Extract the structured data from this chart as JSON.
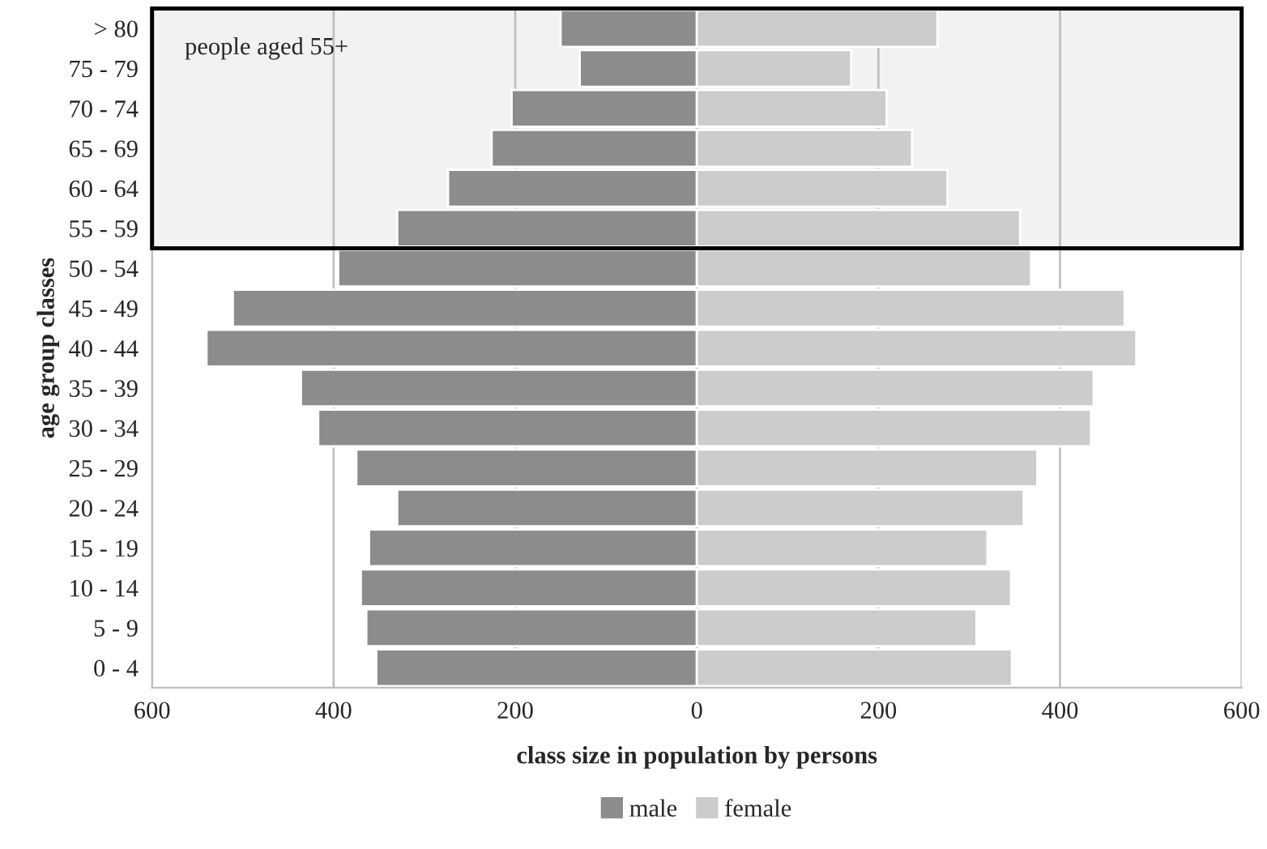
{
  "chart_data": {
    "type": "bar",
    "orientation": "horizontal",
    "stacked": true,
    "xlabel": "class size in population by persons",
    "ylabel": "age group classes",
    "categories": [
      "> 80",
      "75 - 79",
      "70 - 74",
      "65 - 69",
      "60 - 64",
      "55 - 59",
      "50 - 54",
      "45 - 49",
      "40 - 44",
      "35 - 39",
      "30 - 34",
      "25 - 29",
      "20 - 24",
      "15 - 19",
      "10 - 14",
      "5 - 9",
      "0 - 4"
    ],
    "series": [
      {
        "name": "male",
        "color": "#8c8c8c",
        "values": [
          -150,
          -129,
          -204,
          -226,
          -274,
          -330,
          -395,
          -511,
          -540,
          -436,
          -417,
          -375,
          -330,
          -361,
          -370,
          -364,
          -353
        ]
      },
      {
        "name": "female",
        "color": "#cccccc",
        "values": [
          265,
          170,
          209,
          237,
          276,
          356,
          368,
          471,
          484,
          437,
          434,
          375,
          360,
          320,
          346,
          308,
          347
        ]
      }
    ],
    "xlim": [
      -600,
      600
    ],
    "xticks": [
      {
        "value": -600,
        "label": "600"
      },
      {
        "value": -400,
        "label": "400"
      },
      {
        "value": -200,
        "label": "200"
      },
      0,
      200,
      400,
      600
    ],
    "grid": "x",
    "legend": "bottom",
    "bands": [
      {
        "axis": "y",
        "from": "55 - 59",
        "to": "> 80",
        "label": "people aged 55+",
        "color": "#f2f2f2"
      }
    ]
  }
}
